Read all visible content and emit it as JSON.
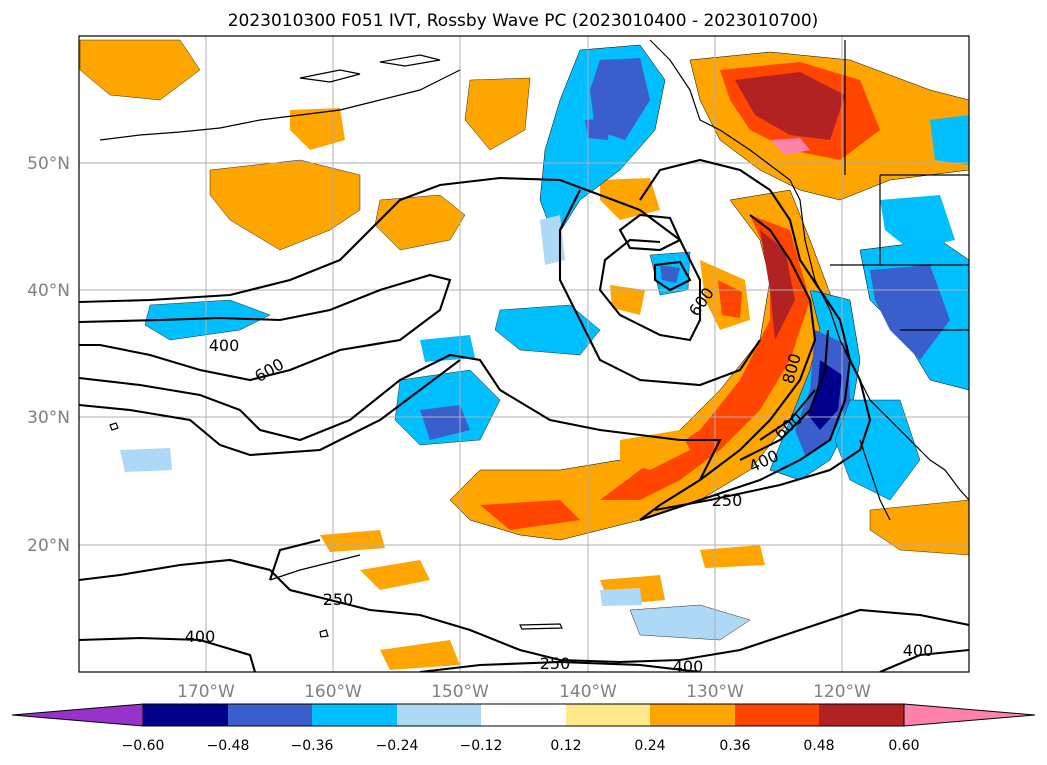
{
  "title": "2023010300 F051 IVT, Rossby Wave PC (2023010400 - 2023010700)",
  "map": {
    "lat_range": [
      10,
      60
    ],
    "lon_range": [
      -180,
      -110
    ],
    "lat_labels": [
      "50°N",
      "40°N",
      "30°N",
      "20°N"
    ],
    "lon_labels": [
      "170°W",
      "160°W",
      "150°W",
      "140°W",
      "130°W",
      "120°W"
    ],
    "contour_labels": [
      "400",
      "600",
      "600",
      "800",
      "600",
      "400",
      "250",
      "250",
      "400",
      "250",
      "400",
      "400"
    ]
  },
  "colorbar": {
    "ticks": [
      "−0.60",
      "−0.48",
      "−0.36",
      "−0.24",
      "−0.12",
      "0.12",
      "0.24",
      "0.36",
      "0.48",
      "0.60"
    ],
    "colors": [
      "#9932cc",
      "#00008b",
      "#3a5fcd",
      "#00bfff",
      "#add8f6",
      "#ffffff",
      "#ffe98a",
      "#ffa500",
      "#ff4500",
      "#b22222",
      "#ff82ab"
    ]
  }
}
